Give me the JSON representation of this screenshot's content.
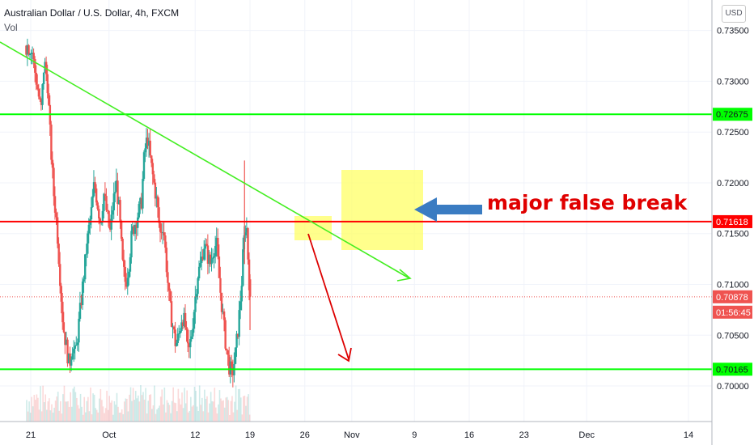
{
  "symbol_title": "Australian Dollar / U.S. Dollar, 4h, FXCM",
  "volume_label": "Vol",
  "currency_button": "USD",
  "annotation": "major false break",
  "countdown": "01:56:45",
  "colors": {
    "up": "#26a69a",
    "down": "#ef5350",
    "support": "#00ff00",
    "resistance": "#ff0000",
    "trendline": "#44ee22",
    "highlight": "#ffff66",
    "arrow_blue": "#3a7cc2",
    "arrow_red": "#dd0000"
  },
  "chart_data": {
    "type": "candlestick",
    "ylim": [
      0.6965,
      0.738
    ],
    "y_ticks": [
      "0.73500",
      "0.73000",
      "0.72500",
      "0.72000",
      "0.71500",
      "0.71000",
      "0.70500",
      "0.70000"
    ],
    "x_ticks": [
      {
        "label": "21",
        "day": 0
      },
      {
        "label": "Oct",
        "day": 10
      },
      {
        "label": "12",
        "day": 21
      },
      {
        "label": "19",
        "day": 28
      },
      {
        "label": "26",
        "day": 35
      },
      {
        "label": "Nov",
        "day": 41
      },
      {
        "label": "9",
        "day": 49
      },
      {
        "label": "16",
        "day": 56
      },
      {
        "label": "23",
        "day": 63
      },
      {
        "label": "Dec",
        "day": 71
      },
      {
        "label": "14",
        "day": 84
      }
    ],
    "horizontal_levels": [
      {
        "value": 0.72675,
        "label": "0.72675",
        "color": "support",
        "tag_text_color": "#131722"
      },
      {
        "value": 0.71618,
        "label": "0.71618",
        "color": "resistance",
        "tag_text_color": "#ffffff"
      },
      {
        "value": 0.70165,
        "label": "0.70165",
        "color": "support",
        "tag_text_color": "#131722"
      }
    ],
    "current_price": {
      "value": 0.70878,
      "label": "0.70878"
    },
    "price_path": [
      [
        0.0,
        0.7335
      ],
      [
        0.4,
        0.731
      ],
      [
        0.8,
        0.729
      ],
      [
        1.2,
        0.727
      ],
      [
        1.6,
        0.732
      ],
      [
        2.0,
        0.73
      ],
      [
        2.4,
        0.724
      ],
      [
        2.8,
        0.719
      ],
      [
        3.2,
        0.716
      ],
      [
        3.6,
        0.711
      ],
      [
        4.0,
        0.706
      ],
      [
        4.4,
        0.704
      ],
      [
        4.8,
        0.702
      ],
      [
        5.2,
        0.704
      ],
      [
        5.6,
        0.703
      ],
      [
        6.0,
        0.706
      ],
      [
        6.4,
        0.709
      ],
      [
        6.8,
        0.712
      ],
      [
        7.2,
        0.715
      ],
      [
        7.6,
        0.717
      ],
      [
        8.0,
        0.72
      ],
      [
        8.4,
        0.718
      ],
      [
        8.8,
        0.716
      ],
      [
        9.2,
        0.719
      ],
      [
        9.6,
        0.717
      ],
      [
        10.0,
        0.715
      ],
      [
        10.4,
        0.718
      ],
      [
        10.8,
        0.72
      ],
      [
        11.2,
        0.717
      ],
      [
        11.6,
        0.712
      ],
      [
        12.0,
        0.71
      ],
      [
        12.4,
        0.712
      ],
      [
        12.8,
        0.715
      ],
      [
        13.2,
        0.716
      ],
      [
        13.6,
        0.717
      ],
      [
        14.0,
        0.718
      ],
      [
        14.4,
        0.723
      ],
      [
        14.8,
        0.7245
      ],
      [
        15.2,
        0.722
      ],
      [
        15.6,
        0.72
      ],
      [
        16.0,
        0.718
      ],
      [
        16.4,
        0.715
      ],
      [
        16.8,
        0.716
      ],
      [
        17.2,
        0.712
      ],
      [
        17.6,
        0.708
      ],
      [
        18.0,
        0.706
      ],
      [
        18.4,
        0.704
      ],
      [
        18.8,
        0.705
      ],
      [
        19.2,
        0.707
      ],
      [
        19.6,
        0.706
      ],
      [
        20.0,
        0.703
      ],
      [
        20.4,
        0.705
      ],
      [
        20.8,
        0.708
      ],
      [
        21.2,
        0.711
      ],
      [
        21.6,
        0.712
      ],
      [
        22.0,
        0.714
      ],
      [
        22.4,
        0.713
      ],
      [
        22.8,
        0.712
      ],
      [
        23.2,
        0.7135
      ],
      [
        23.6,
        0.714
      ],
      [
        24.0,
        0.71
      ],
      [
        24.4,
        0.707
      ],
      [
        24.8,
        0.704
      ],
      [
        25.2,
        0.702
      ],
      [
        25.6,
        0.701
      ],
      [
        26.0,
        0.703
      ],
      [
        26.4,
        0.706
      ],
      [
        26.8,
        0.71
      ],
      [
        27.0,
        0.713
      ],
      [
        27.2,
        0.715
      ],
      [
        27.4,
        0.7165
      ],
      [
        27.6,
        0.713
      ],
      [
        27.8,
        0.71
      ],
      [
        27.9,
        0.7088
      ]
    ],
    "volume_ylim": [
      0,
      1
    ]
  }
}
